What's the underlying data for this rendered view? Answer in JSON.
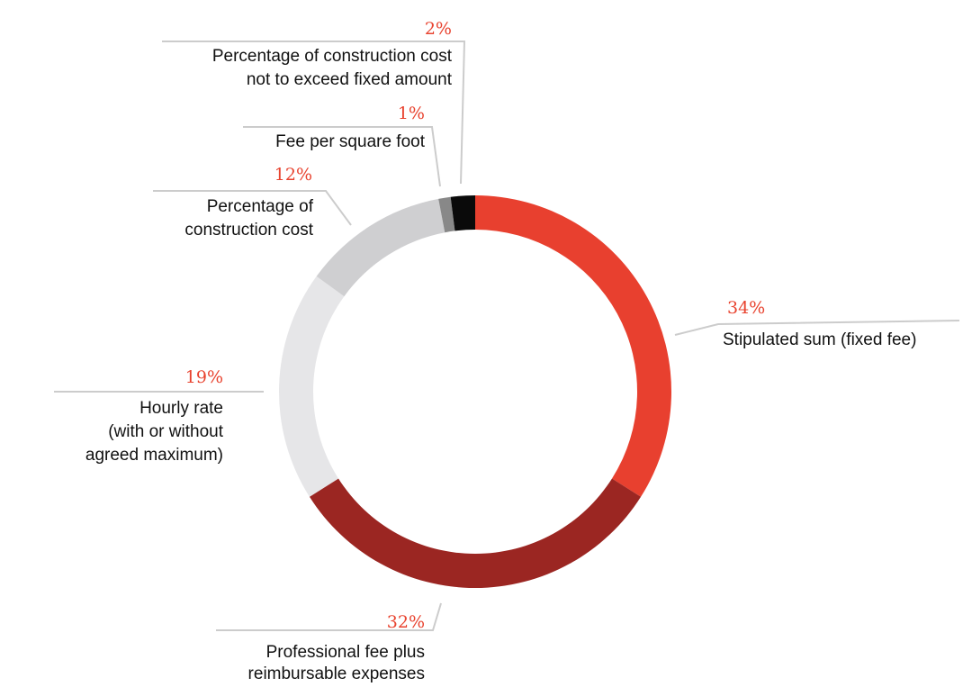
{
  "chart_data": {
    "type": "pie",
    "donut": true,
    "legend": "none",
    "grid": false,
    "slices": [
      {
        "value": 34,
        "value_label": "34%",
        "label_lines": [
          "Stipulated sum (fixed fee)"
        ],
        "color": "#e8402f"
      },
      {
        "value": 32,
        "value_label": "32%",
        "label_lines": [
          "Professional fee plus",
          "reimbursable expenses"
        ],
        "color": "#9b2622"
      },
      {
        "value": 19,
        "value_label": "19%",
        "label_lines": [
          "Hourly rate",
          "(with or without",
          "agreed maximum)"
        ],
        "color": "#e6e6e8"
      },
      {
        "value": 12,
        "value_label": "12%",
        "label_lines": [
          "Percentage of",
          "construction cost"
        ],
        "color": "#cfcfd1"
      },
      {
        "value": 1,
        "value_label": "1%",
        "label_lines": [
          "Fee per square foot"
        ],
        "color": "#888888"
      },
      {
        "value": 2,
        "value_label": "2%",
        "label_lines": [
          "Percentage of construction cost",
          "not to exceed fixed amount"
        ],
        "color": "#0a0a0a"
      }
    ]
  }
}
